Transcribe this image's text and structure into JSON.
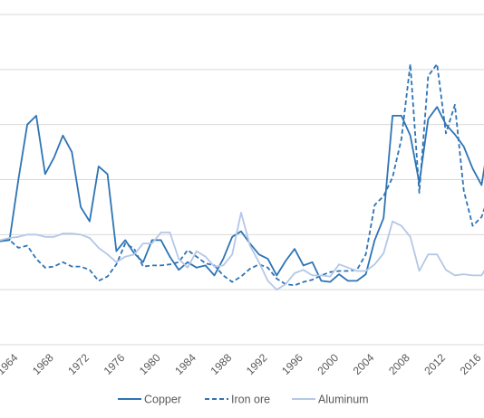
{
  "chart_data": {
    "type": "line",
    "xlabel": "",
    "ylabel": "",
    "x_tick_labels": [
      "1964",
      "1968",
      "1972",
      "1976",
      "1980",
      "1984",
      "1988",
      "1992",
      "1996",
      "2000",
      "2004",
      "2008",
      "2012",
      "2016"
    ],
    "x_range": [
      1960,
      2018
    ],
    "y_range": [
      0,
      300
    ],
    "y_gridlines": [
      0,
      50,
      100,
      150,
      200,
      250,
      300
    ],
    "x": [
      1960,
      1961,
      1962,
      1963,
      1964,
      1965,
      1966,
      1967,
      1968,
      1969,
      1970,
      1971,
      1972,
      1973,
      1974,
      1975,
      1976,
      1977,
      1978,
      1979,
      1980,
      1981,
      1982,
      1983,
      1984,
      1985,
      1986,
      1987,
      1988,
      1989,
      1990,
      1991,
      1992,
      1993,
      1994,
      1995,
      1996,
      1997,
      1998,
      1999,
      2000,
      2001,
      2002,
      2003,
      2004,
      2005,
      2006,
      2007,
      2008,
      2009,
      2010,
      2011,
      2012,
      2013,
      2014,
      2015,
      2016,
      2017,
      2018
    ],
    "series": [
      {
        "name": "Copper",
        "color": "#2e74b5",
        "dash": "solid",
        "values": [
          96,
          94,
          94,
          95,
          150,
          200,
          208,
          155,
          170,
          190,
          175,
          125,
          112,
          162,
          155,
          85,
          95,
          83,
          75,
          95,
          95,
          80,
          68,
          75,
          70,
          72,
          63,
          78,
          98,
          103,
          92,
          82,
          78,
          63,
          76,
          87,
          72,
          75,
          58,
          57,
          64,
          58,
          58,
          64,
          95,
          115,
          208,
          208,
          190,
          147,
          205,
          216,
          200,
          191,
          180,
          160,
          145,
          195,
          195
        ]
      },
      {
        "name": "Iron ore",
        "color": "#2e74b5",
        "dash": "5 3",
        "values": [
          94,
          95,
          95,
          95,
          88,
          90,
          78,
          70,
          71,
          75,
          71,
          71,
          68,
          58,
          62,
          73,
          92,
          87,
          71,
          72,
          72,
          73,
          75,
          86,
          80,
          74,
          72,
          63,
          57,
          62,
          69,
          73,
          70,
          60,
          55,
          54,
          57,
          59,
          63,
          66,
          67,
          67,
          68,
          82,
          127,
          135,
          152,
          187,
          255,
          138,
          244,
          255,
          192,
          218,
          140,
          108,
          116,
          140,
          140
        ]
      },
      {
        "name": "Aluminum",
        "color": "#b4c7e7",
        "dash": "solid",
        "values": [
          98,
          95,
          95,
          97,
          98,
          100,
          100,
          98,
          98,
          101,
          101,
          100,
          97,
          88,
          82,
          75,
          80,
          82,
          92,
          92,
          102,
          102,
          78,
          70,
          85,
          80,
          71,
          72,
          82,
          120,
          90,
          75,
          58,
          50,
          55,
          65,
          68,
          63,
          63,
          62,
          73,
          70,
          67,
          67,
          73,
          83,
          112,
          108,
          98,
          67,
          82,
          82,
          68,
          63,
          64,
          63,
          63,
          77,
          77
        ]
      }
    ],
    "legend_position": "bottom",
    "grid": true
  }
}
